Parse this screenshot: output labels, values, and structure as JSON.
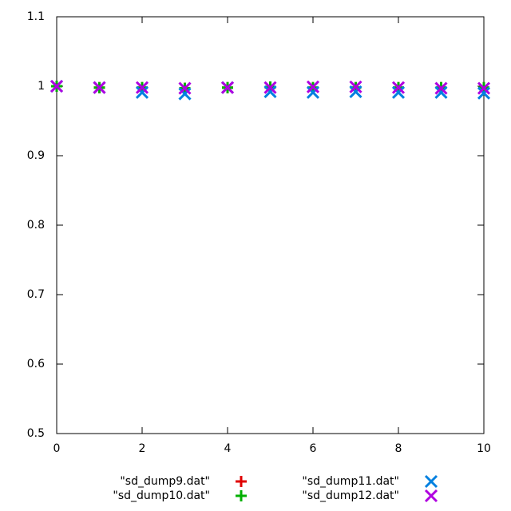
{
  "chart_data": {
    "type": "scatter",
    "x": [
      0,
      1,
      2,
      3,
      4,
      5,
      6,
      7,
      8,
      9,
      10
    ],
    "series": [
      {
        "name": "\"sd_dump9.dat\"",
        "color": "#e00000",
        "marker": "plus",
        "values": [
          1,
          0.998,
          0.998,
          0.997,
          0.998,
          0.998,
          0.998,
          0.998,
          0.998,
          0.998,
          0.998
        ]
      },
      {
        "name": "\"sd_dump10.dat\"",
        "color": "#00b000",
        "marker": "plus",
        "values": [
          1,
          0.998,
          0.998,
          0.997,
          0.998,
          0.999,
          0.998,
          0.998,
          0.998,
          0.998,
          0.998
        ]
      },
      {
        "name": "\"sd_dump11.dat\"",
        "color": "#0080e0",
        "marker": "cross",
        "values": [
          1,
          0.998,
          0.991,
          0.989,
          0.998,
          0.992,
          0.991,
          0.992,
          0.991,
          0.991,
          0.99
        ]
      },
      {
        "name": "\"sd_dump12.dat\"",
        "color": "#b000e0",
        "marker": "cross",
        "values": [
          1,
          0.998,
          0.998,
          0.997,
          0.998,
          0.998,
          0.999,
          0.999,
          0.998,
          0.997,
          0.997
        ]
      }
    ],
    "xlim": [
      0,
      10
    ],
    "xticks": [
      0,
      2,
      4,
      6,
      8,
      10
    ],
    "ylim": [
      0.5,
      1.1
    ],
    "yticks": [
      0.5,
      0.6,
      0.7,
      0.8,
      0.9,
      1,
      1.1
    ],
    "grid": false,
    "legend": "bottom"
  }
}
